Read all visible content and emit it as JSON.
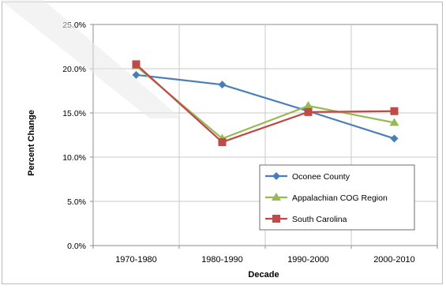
{
  "chart_data": {
    "type": "line",
    "title": "",
    "xlabel": "Decade",
    "ylabel": "Percent Change",
    "categories": [
      "1970-1980",
      "1980-1990",
      "1990-2000",
      "2000-2010"
    ],
    "ylim": [
      0,
      25
    ],
    "yticks": [
      "0.0%",
      "5.0%",
      "10.0%",
      "15.0%",
      "20.0%",
      "25.0%"
    ],
    "grid": true,
    "legend_position": "lower-right",
    "series": [
      {
        "name": "Oconee County",
        "color": "#4a7ebb",
        "marker": "diamond",
        "values": [
          19.3,
          18.2,
          15.2,
          12.1
        ]
      },
      {
        "name": "Appalachian COG Region",
        "color": "#98b954",
        "marker": "triangle",
        "values": [
          20.3,
          12.1,
          15.8,
          13.9
        ]
      },
      {
        "name": "South Carolina",
        "color": "#be4b48",
        "marker": "square",
        "values": [
          20.5,
          11.7,
          15.1,
          15.2
        ]
      }
    ]
  }
}
